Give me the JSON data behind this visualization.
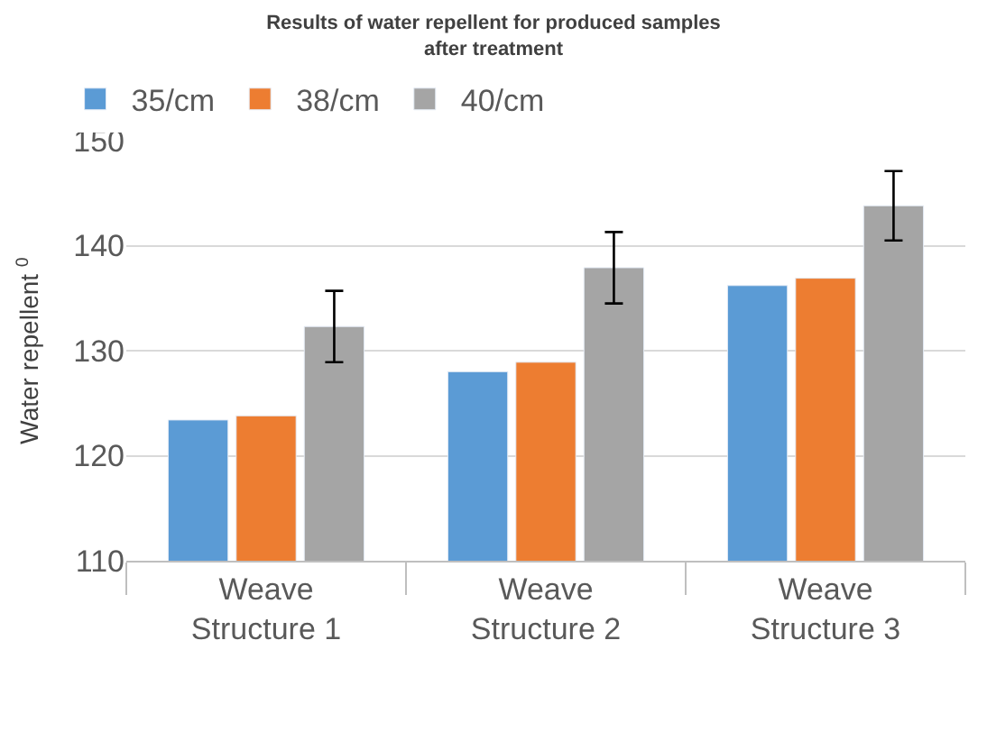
{
  "chart_data": {
    "type": "bar",
    "title": "Results of water repellent for produced samples after treatment",
    "ylabel": "Water repellent $^{0}$",
    "categories": [
      "Weave Structure 1",
      "Weave Structure 2",
      "Weave Structure 3"
    ],
    "series": [
      {
        "name": "35/cm",
        "color": "#5b9bd5",
        "values": [
          123.4,
          128.0,
          136.2
        ]
      },
      {
        "name": "38/cm",
        "color": "#ed7d31",
        "values": [
          123.8,
          128.9,
          136.9
        ]
      },
      {
        "name": "40/cm",
        "color": "#a5a5a5",
        "values": [
          132.3,
          137.9,
          143.8
        ],
        "errors": [
          3.4,
          3.4,
          3.3
        ]
      }
    ],
    "ylim": [
      110,
      150
    ],
    "yticks": [
      110,
      120,
      130,
      140,
      150
    ],
    "grid": "y",
    "legend": "top left"
  }
}
